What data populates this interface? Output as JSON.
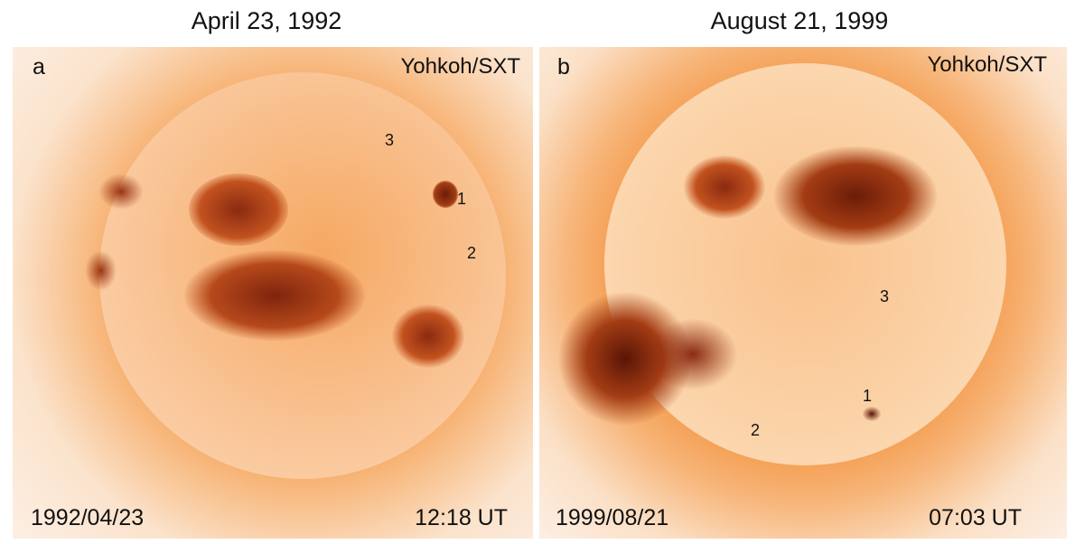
{
  "panels": [
    {
      "title": "April 23, 1992",
      "letter": "a",
      "instrument": "Yohkoh/SXT",
      "date": "1992/04/23",
      "time": "12:18 UT",
      "markers": [
        "1",
        "2",
        "3"
      ]
    },
    {
      "title": "August 21, 1999",
      "letter": "b",
      "instrument": "Yohkoh/SXT",
      "date": "1999/08/21",
      "time": "07:03 UT",
      "markers": [
        "1",
        "2",
        "3"
      ]
    }
  ],
  "colors": {
    "corona": "#f7a257",
    "disk": "#fbd3a8",
    "active_region": "#8a2a10",
    "background": "#fbe7d6"
  }
}
